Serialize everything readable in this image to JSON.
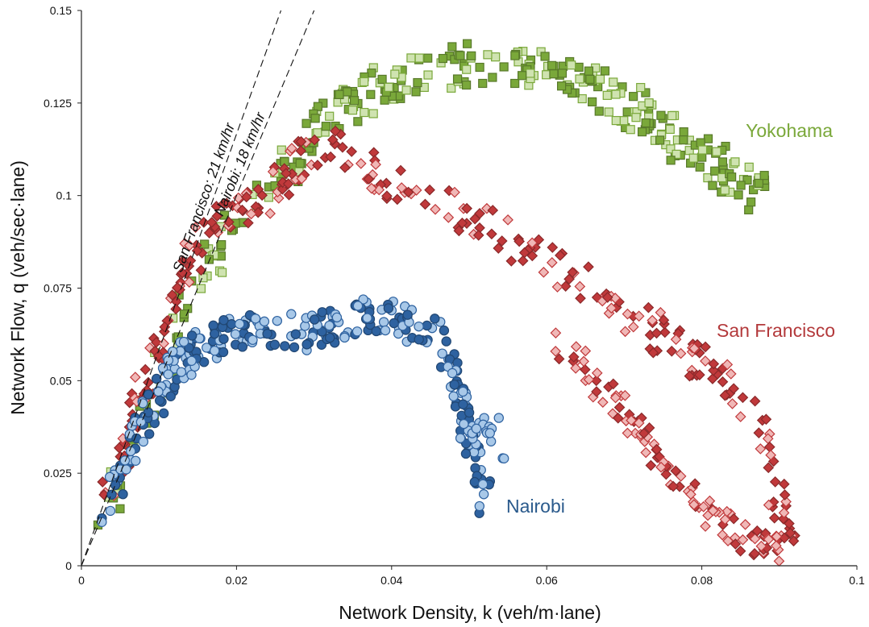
{
  "chart_data": {
    "type": "scatter",
    "xlabel": "Network Density, k (veh/m·lane)",
    "ylabel": "Network Flow, q (veh/sec·lane)",
    "xlim": [
      0,
      0.1
    ],
    "ylim": [
      0,
      0.15
    ],
    "x_ticks": [
      "0",
      "0.02",
      "0.04",
      "0.06",
      "0.08",
      "0.1"
    ],
    "y_ticks": [
      "0",
      "0.025",
      "0.05",
      "0.075",
      "0.1",
      "0.125",
      "0.15"
    ],
    "grid": false,
    "reference_lines": [
      {
        "label": "San Francisco: 21 km/hr",
        "slope": 5.83
      },
      {
        "label": "Nairobi: 18 km/hr",
        "slope": 5.0
      }
    ],
    "series": [
      {
        "name": "Yokohama",
        "marker": "square",
        "color": "#7aa83a",
        "light_color": "#cfe3b0",
        "trend": [
          [
            0.003,
            0.016
          ],
          [
            0.005,
            0.026
          ],
          [
            0.008,
            0.04
          ],
          [
            0.01,
            0.05
          ],
          [
            0.012,
            0.06
          ],
          [
            0.014,
            0.07
          ],
          [
            0.016,
            0.08
          ],
          [
            0.018,
            0.087
          ],
          [
            0.02,
            0.093
          ],
          [
            0.022,
            0.098
          ],
          [
            0.024,
            0.102
          ],
          [
            0.026,
            0.107
          ],
          [
            0.028,
            0.113
          ],
          [
            0.03,
            0.118
          ],
          [
            0.033,
            0.122
          ],
          [
            0.036,
            0.127
          ],
          [
            0.04,
            0.13
          ],
          [
            0.044,
            0.133
          ],
          [
            0.048,
            0.135
          ],
          [
            0.052,
            0.136
          ],
          [
            0.056,
            0.135
          ],
          [
            0.06,
            0.134
          ],
          [
            0.064,
            0.131
          ],
          [
            0.068,
            0.127
          ],
          [
            0.072,
            0.123
          ],
          [
            0.076,
            0.117
          ],
          [
            0.08,
            0.111
          ],
          [
            0.083,
            0.106
          ],
          [
            0.086,
            0.102
          ],
          [
            0.088,
            0.1
          ]
        ]
      },
      {
        "name": "San Francisco",
        "marker": "diamond",
        "color": "#c0393b",
        "light_color": "#f0b7b6",
        "trend": [
          [
            0.003,
            0.02
          ],
          [
            0.005,
            0.03
          ],
          [
            0.007,
            0.042
          ],
          [
            0.009,
            0.055
          ],
          [
            0.011,
            0.065
          ],
          [
            0.013,
            0.077
          ],
          [
            0.015,
            0.087
          ],
          [
            0.018,
            0.093
          ],
          [
            0.021,
            0.096
          ],
          [
            0.024,
            0.1
          ],
          [
            0.027,
            0.107
          ],
          [
            0.03,
            0.113
          ],
          [
            0.033,
            0.113
          ],
          [
            0.036,
            0.108
          ],
          [
            0.04,
            0.104
          ],
          [
            0.044,
            0.101
          ],
          [
            0.048,
            0.097
          ],
          [
            0.052,
            0.092
          ],
          [
            0.056,
            0.086
          ],
          [
            0.06,
            0.082
          ],
          [
            0.064,
            0.077
          ],
          [
            0.068,
            0.071
          ],
          [
            0.072,
            0.066
          ],
          [
            0.076,
            0.061
          ],
          [
            0.08,
            0.055
          ],
          [
            0.084,
            0.048
          ],
          [
            0.087,
            0.04
          ],
          [
            0.089,
            0.03
          ],
          [
            0.09,
            0.018
          ],
          [
            0.091,
            0.004
          ]
        ],
        "return_trend": [
          [
            0.09,
            0.004
          ],
          [
            0.086,
            0.006
          ],
          [
            0.082,
            0.012
          ],
          [
            0.078,
            0.02
          ],
          [
            0.074,
            0.03
          ],
          [
            0.07,
            0.04
          ],
          [
            0.066,
            0.05
          ],
          [
            0.062,
            0.06
          ]
        ]
      },
      {
        "name": "Nairobi",
        "marker": "circle",
        "color": "#2e62a0",
        "light_color": "#a8c8e8",
        "trend": [
          [
            0.003,
            0.015
          ],
          [
            0.005,
            0.025
          ],
          [
            0.007,
            0.035
          ],
          [
            0.009,
            0.043
          ],
          [
            0.011,
            0.05
          ],
          [
            0.013,
            0.055
          ],
          [
            0.015,
            0.059
          ],
          [
            0.018,
            0.062
          ],
          [
            0.021,
            0.064
          ],
          [
            0.024,
            0.064
          ],
          [
            0.027,
            0.064
          ],
          [
            0.03,
            0.063
          ],
          [
            0.033,
            0.065
          ],
          [
            0.036,
            0.067
          ],
          [
            0.039,
            0.068
          ],
          [
            0.042,
            0.066
          ],
          [
            0.045,
            0.063
          ],
          [
            0.047,
            0.058
          ],
          [
            0.048,
            0.052
          ],
          [
            0.049,
            0.044
          ],
          [
            0.05,
            0.034
          ],
          [
            0.051,
            0.026
          ],
          [
            0.052,
            0.018
          ]
        ],
        "tail": [
          [
            0.049,
            0.037
          ],
          [
            0.05,
            0.035
          ],
          [
            0.051,
            0.036
          ],
          [
            0.052,
            0.037
          ],
          [
            0.053,
            0.038
          ],
          [
            0.054,
            0.033
          ],
          [
            0.054,
            0.03
          ]
        ]
      }
    ]
  }
}
